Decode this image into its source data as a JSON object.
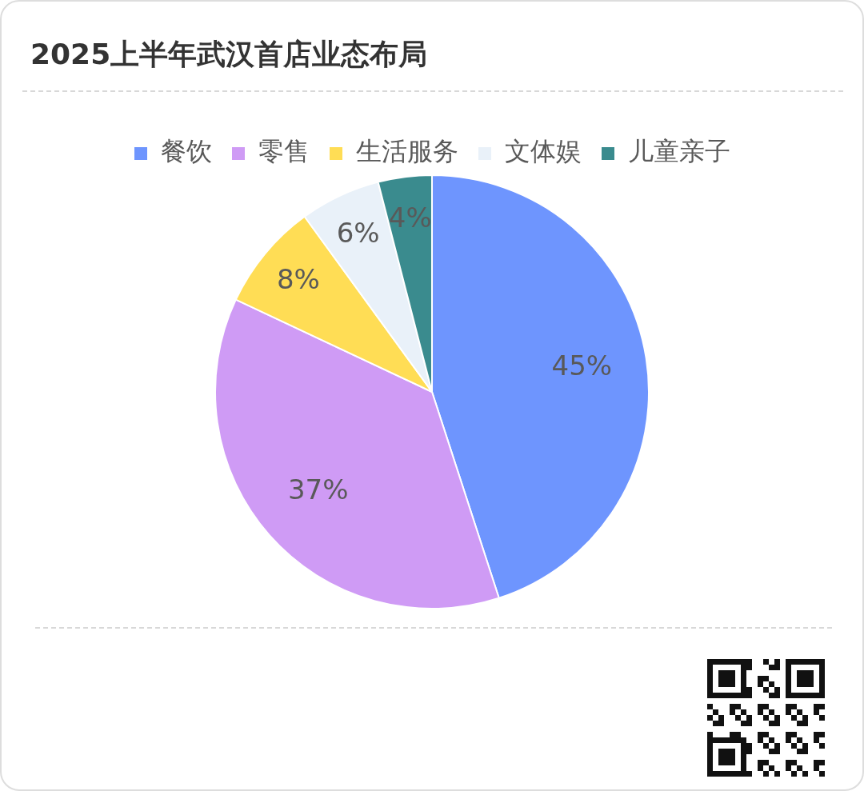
{
  "chart_data": {
    "type": "pie",
    "title": "2025上半年武汉首店业态布局",
    "categories": [
      "餐饮",
      "零售",
      "生活服务",
      "文体娱",
      "儿童亲子"
    ],
    "values": [
      45,
      37,
      8,
      6,
      4
    ],
    "value_labels": [
      "45%",
      "37%",
      "8%",
      "6%",
      "4%"
    ],
    "colors": [
      "#6e95fe",
      "#cf9bf5",
      "#ffdd55",
      "#e9f1f9",
      "#3a8b8e"
    ],
    "legend": "top"
  }
}
